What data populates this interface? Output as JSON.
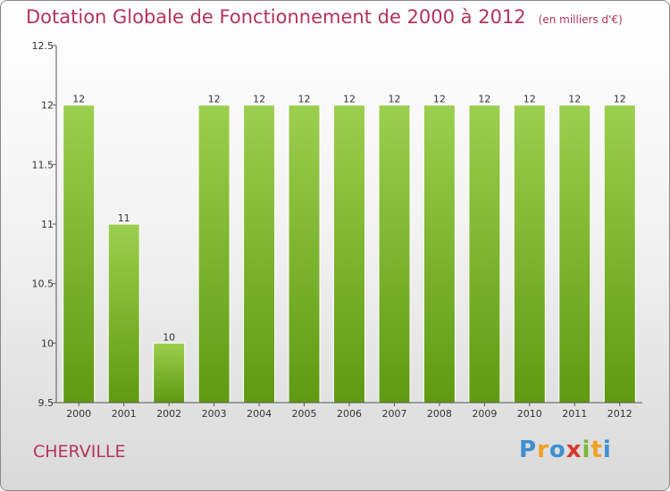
{
  "header": {
    "title": "Dotation Globale de Fonctionnement de 2000 à 2012",
    "unit": "(en milliers d'€)"
  },
  "footer": {
    "commune": "CHERVILLE",
    "logo": "Proxiti"
  },
  "colors": {
    "title": "#b5325a",
    "bar_top": "#9ccf4e",
    "bar_bottom": "#5f9a12"
  },
  "chart_data": {
    "type": "bar",
    "categories": [
      "2000",
      "2001",
      "2002",
      "2003",
      "2004",
      "2005",
      "2006",
      "2007",
      "2008",
      "2009",
      "2010",
      "2011",
      "2012"
    ],
    "values": [
      12,
      11,
      10,
      12,
      12,
      12,
      12,
      12,
      12,
      12,
      12,
      12,
      12
    ],
    "data_labels": [
      "12",
      "11",
      "10",
      "12",
      "12",
      "12",
      "12",
      "12",
      "12",
      "12",
      "12",
      "12",
      "12"
    ],
    "ylim": [
      9.5,
      12.5
    ],
    "yticks": [
      9.5,
      10,
      10.5,
      11,
      11.5,
      12,
      12.5
    ],
    "ytick_labels": [
      "9.5",
      "10",
      "10.5",
      "11",
      "11.5",
      "12",
      "12.5"
    ],
    "grid": false,
    "xlabel": "",
    "ylabel": ""
  }
}
